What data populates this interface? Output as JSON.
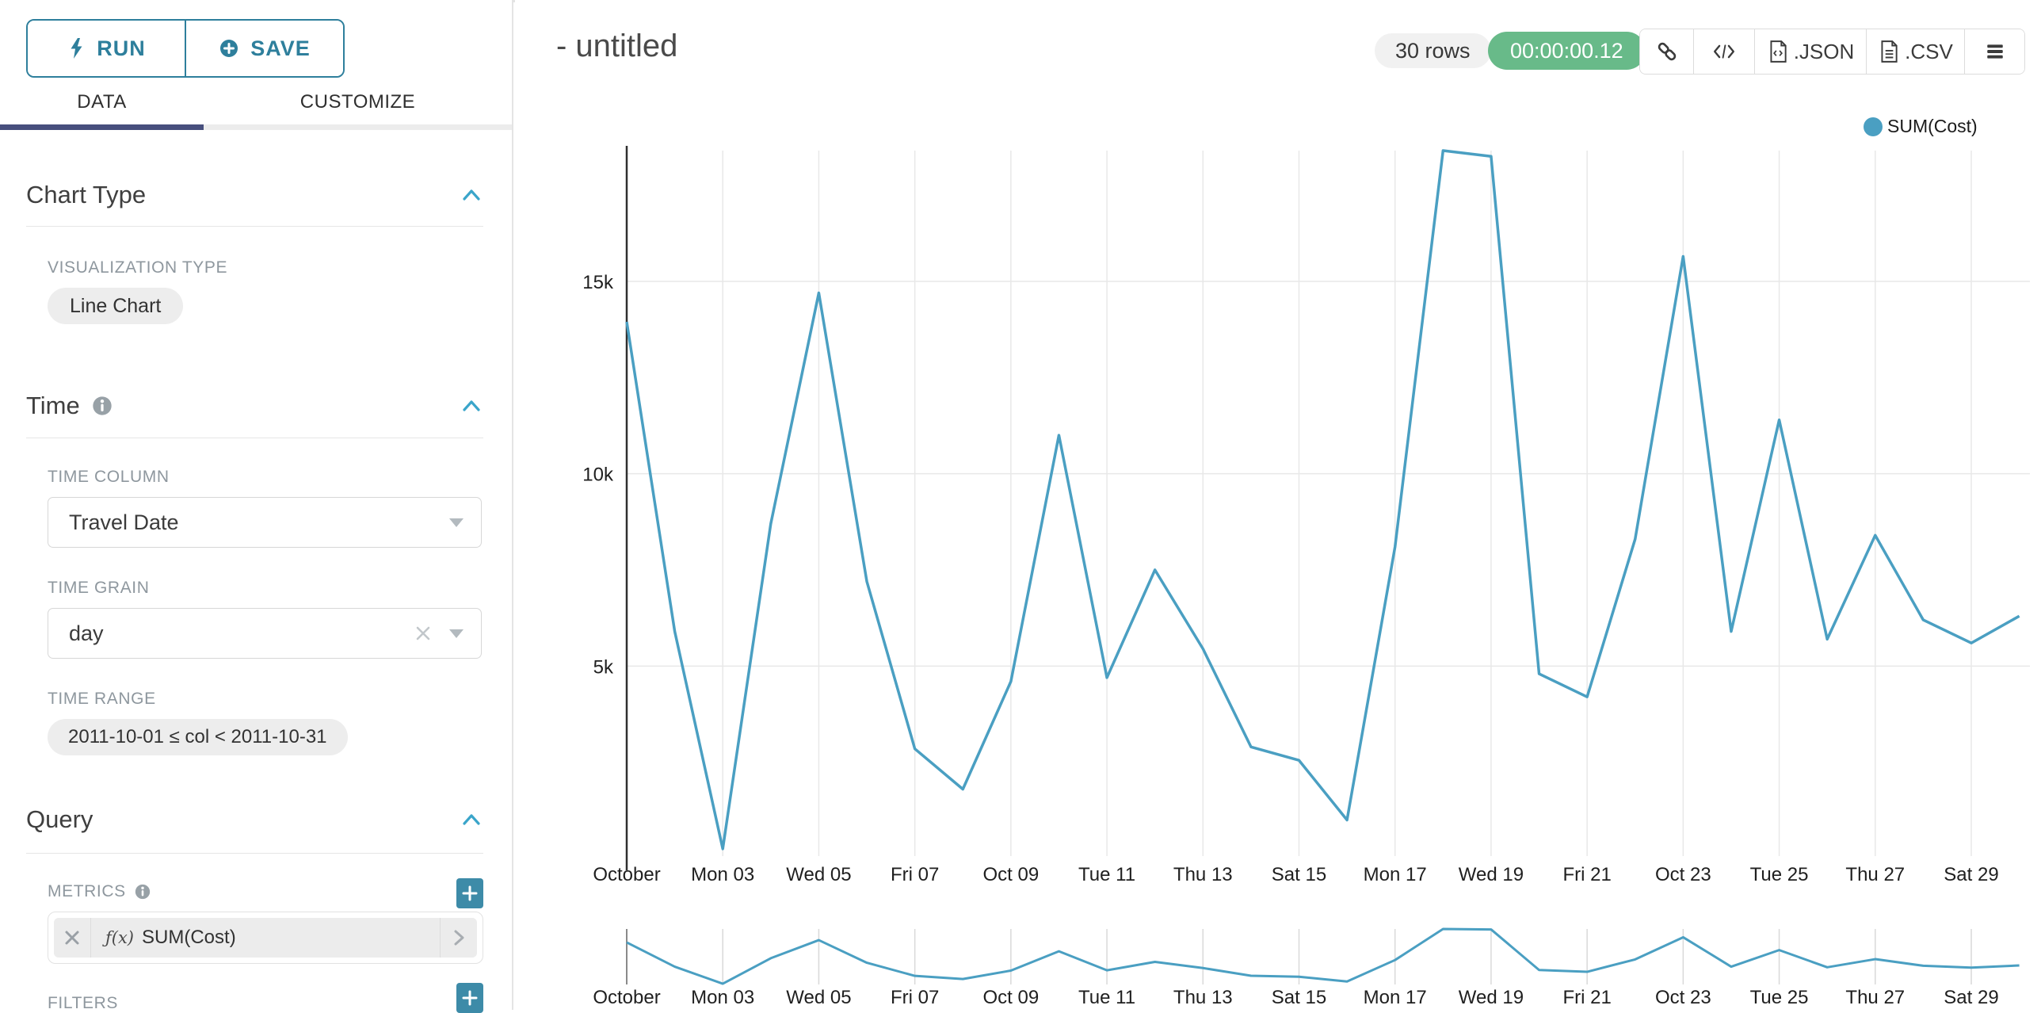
{
  "colors": {
    "accent_teal": "#2e7f9c",
    "plus_button_teal": "#3d8ba8",
    "chevron_blue": "#3aa5ca",
    "active_tab_navy": "#474f7d",
    "success_green": "#68ba89",
    "series_line": "#4a9fc2",
    "pill_gray": "#ededed",
    "label_gray": "#8e979e"
  },
  "sidebar": {
    "run_label": "RUN",
    "save_label": "SAVE",
    "tabs": [
      {
        "label": "DATA",
        "active": true
      },
      {
        "label": "CUSTOMIZE",
        "active": false
      }
    ],
    "chart_type": {
      "title": "Chart Type",
      "viz_type_label": "VISUALIZATION TYPE",
      "viz_type_value": "Line Chart"
    },
    "time": {
      "title": "Time",
      "time_column_label": "TIME COLUMN",
      "time_column_value": "Travel Date",
      "time_grain_label": "TIME GRAIN",
      "time_grain_value": "day",
      "time_range_label": "TIME RANGE",
      "time_range_value": "2011-10-01 ≤ col < 2011-10-31"
    },
    "query": {
      "title": "Query",
      "metrics_label": "METRICS",
      "metric_fn_prefix": "ƒ(x)",
      "metric_value": "SUM(Cost)",
      "filters_label": "FILTERS"
    }
  },
  "header": {
    "title": "- untitled",
    "rows_badge": "30 rows",
    "timer_badge": "00:00:00.12",
    "export_json_label": ".JSON",
    "export_csv_label": ".CSV"
  },
  "chart_data": {
    "type": "line",
    "title": "",
    "legend": [
      {
        "label": "SUM(Cost)",
        "color": "#4a9fc2"
      }
    ],
    "x_start_date": "2011-10-01",
    "x_end_date": "2011-10-30",
    "series": [
      {
        "name": "SUM(Cost)",
        "values": [
          13950,
          5900,
          250,
          8700,
          14700,
          7200,
          2850,
          1800,
          4600,
          11000,
          4700,
          7500,
          5450,
          2900,
          2550,
          1000,
          8100,
          18400,
          18250,
          4800,
          4200,
          8300,
          15650,
          5900,
          11400,
          5700,
          8400,
          6200,
          5600,
          6300
        ]
      }
    ],
    "x_ticks": [
      {
        "day": 1,
        "label": "October"
      },
      {
        "day": 3,
        "label": "Mon 03"
      },
      {
        "day": 5,
        "label": "Wed 05"
      },
      {
        "day": 7,
        "label": "Fri 07"
      },
      {
        "day": 9,
        "label": "Oct 09"
      },
      {
        "day": 11,
        "label": "Tue 11"
      },
      {
        "day": 13,
        "label": "Thu 13"
      },
      {
        "day": 15,
        "label": "Sat 15"
      },
      {
        "day": 17,
        "label": "Mon 17"
      },
      {
        "day": 19,
        "label": "Wed 19"
      },
      {
        "day": 21,
        "label": "Fri 21"
      },
      {
        "day": 23,
        "label": "Oct 23"
      },
      {
        "day": 25,
        "label": "Tue 25"
      },
      {
        "day": 27,
        "label": "Thu 27"
      },
      {
        "day": 29,
        "label": "Sat 29"
      }
    ],
    "y_ticks": [
      {
        "value": 5000,
        "label": "5k"
      },
      {
        "value": 10000,
        "label": "10k"
      },
      {
        "value": 15000,
        "label": "15k"
      }
    ],
    "ylim": [
      0,
      18400
    ],
    "grid": true,
    "legend_position": "top-right",
    "has_mini_map": true
  }
}
